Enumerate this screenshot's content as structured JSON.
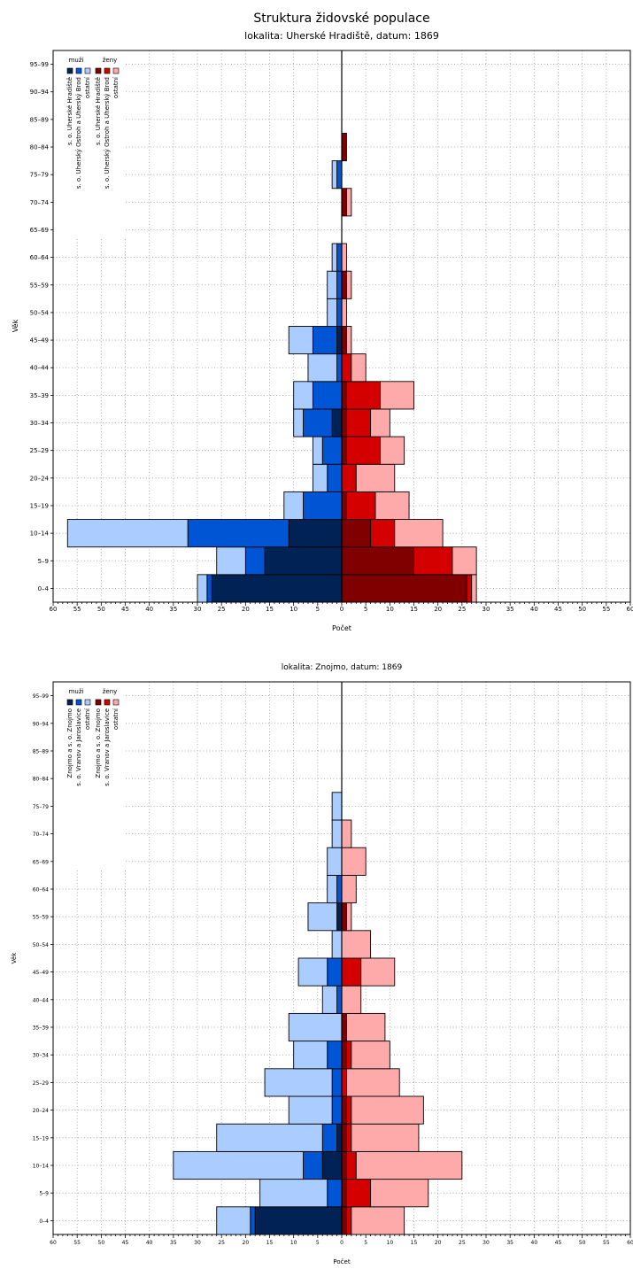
{
  "title": "Struktura židovské populace",
  "chart_data": [
    {
      "type": "bar",
      "subtitle": "lokalita: Uherské Hradiště, datum: 1869",
      "xlabel": "Počet",
      "ylabel": "Věk",
      "xlim": [
        -60,
        60
      ],
      "xticks": [
        60,
        55,
        50,
        45,
        40,
        35,
        30,
        25,
        20,
        15,
        10,
        5,
        0,
        5,
        10,
        15,
        20,
        25,
        30,
        35,
        40,
        45,
        50,
        55,
        60
      ],
      "grid": true,
      "legend_placement": "top-left",
      "legend": {
        "males_label": "muži",
        "females_label": "ženy",
        "groups": [
          "s. o. Uherské Hradiště",
          "s. o. Uherský Ostroh a Uherský Brod",
          "ostatní"
        ]
      },
      "colors": {
        "male": [
          "#002255",
          "#0055d4",
          "#aaccff"
        ],
        "female": [
          "#800000",
          "#d40000",
          "#ffaaaa"
        ]
      },
      "categories": [
        "0–4",
        "5–9",
        "10–14",
        "15–19",
        "20–24",
        "25–29",
        "30–34",
        "35–39",
        "40–44",
        "45–49",
        "50–54",
        "55–59",
        "60–64",
        "65–69",
        "70–74",
        "75–79",
        "80–84",
        "85–89",
        "90–94",
        "95–99"
      ],
      "males": [
        [
          27,
          1,
          2
        ],
        [
          16,
          4,
          6
        ],
        [
          11,
          21,
          25
        ],
        [
          0,
          8,
          4
        ],
        [
          0,
          3,
          3
        ],
        [
          0,
          4,
          2
        ],
        [
          2,
          6,
          2
        ],
        [
          0,
          6,
          4
        ],
        [
          0,
          1,
          6
        ],
        [
          1,
          5,
          5
        ],
        [
          0,
          1,
          2
        ],
        [
          0,
          1,
          2
        ],
        [
          0,
          1,
          1
        ],
        [
          0,
          0,
          0
        ],
        [
          0,
          0,
          0
        ],
        [
          0,
          1,
          1
        ],
        [
          0,
          0,
          0
        ],
        [
          0,
          0,
          0
        ],
        [
          0,
          0,
          0
        ],
        [
          0,
          0,
          0
        ]
      ],
      "females": [
        [
          26,
          1,
          1
        ],
        [
          15,
          8,
          5
        ],
        [
          6,
          5,
          10
        ],
        [
          1,
          6,
          7
        ],
        [
          0,
          3,
          8
        ],
        [
          1,
          7,
          5
        ],
        [
          1,
          5,
          4
        ],
        [
          1,
          7,
          7
        ],
        [
          0,
          2,
          3
        ],
        [
          1,
          0,
          1
        ],
        [
          0,
          0,
          1
        ],
        [
          1,
          0,
          1
        ],
        [
          0,
          0,
          1
        ],
        [
          0,
          0,
          0
        ],
        [
          1,
          0,
          1
        ],
        [
          0,
          0,
          0
        ],
        [
          1,
          0,
          0
        ],
        [
          0,
          0,
          0
        ],
        [
          0,
          0,
          0
        ],
        [
          0,
          0,
          0
        ]
      ]
    },
    {
      "type": "bar",
      "subtitle": "lokalita: Znojmo, datum: 1869",
      "xlabel": "Počet",
      "ylabel": "Věk",
      "xlim": [
        -60,
        60
      ],
      "xticks": [
        60,
        55,
        50,
        45,
        40,
        35,
        30,
        25,
        20,
        15,
        10,
        5,
        0,
        5,
        10,
        15,
        20,
        25,
        30,
        35,
        40,
        45,
        50,
        55,
        60
      ],
      "grid": true,
      "legend_placement": "top-left",
      "legend": {
        "males_label": "muži",
        "females_label": "ženy",
        "groups": [
          "Znojmo a s. o. Znojmo",
          "s. o. Vranov a Jaroslavice",
          "ostatní"
        ]
      },
      "colors": {
        "male": [
          "#002255",
          "#0055d4",
          "#aaccff"
        ],
        "female": [
          "#800000",
          "#d40000",
          "#ffaaaa"
        ]
      },
      "categories": [
        "0–4",
        "5–9",
        "10–14",
        "15–19",
        "20–24",
        "25–29",
        "30–34",
        "35–39",
        "40–44",
        "45–49",
        "50–54",
        "55–59",
        "60–64",
        "65–69",
        "70–74",
        "75–79",
        "80–84",
        "85–89",
        "90–94",
        "95–99"
      ],
      "males": [
        [
          18,
          1,
          7
        ],
        [
          0,
          3,
          14
        ],
        [
          4,
          4,
          27
        ],
        [
          1,
          3,
          22
        ],
        [
          0,
          2,
          9
        ],
        [
          0,
          2,
          14
        ],
        [
          0,
          3,
          7
        ],
        [
          0,
          0,
          11
        ],
        [
          0,
          1,
          3
        ],
        [
          0,
          3,
          6
        ],
        [
          0,
          0,
          2
        ],
        [
          1,
          0,
          6
        ],
        [
          0,
          1,
          2
        ],
        [
          0,
          0,
          3
        ],
        [
          0,
          0,
          2
        ],
        [
          0,
          0,
          2
        ],
        [
          0,
          0,
          0
        ],
        [
          0,
          0,
          0
        ],
        [
          0,
          0,
          0
        ],
        [
          0,
          0,
          0
        ]
      ],
      "females": [
        [
          1,
          1,
          11
        ],
        [
          1,
          5,
          12
        ],
        [
          1,
          2,
          22
        ],
        [
          1,
          1,
          14
        ],
        [
          1,
          1,
          15
        ],
        [
          0,
          1,
          11
        ],
        [
          1,
          1,
          8
        ],
        [
          1,
          0,
          8
        ],
        [
          0,
          0,
          4
        ],
        [
          0,
          4,
          7
        ],
        [
          0,
          0,
          6
        ],
        [
          1,
          0,
          1
        ],
        [
          0,
          0,
          3
        ],
        [
          0,
          0,
          5
        ],
        [
          0,
          0,
          2
        ],
        [
          0,
          0,
          0
        ],
        [
          0,
          0,
          0
        ],
        [
          0,
          0,
          0
        ],
        [
          0,
          0,
          0
        ],
        [
          0,
          0,
          0
        ]
      ]
    }
  ]
}
